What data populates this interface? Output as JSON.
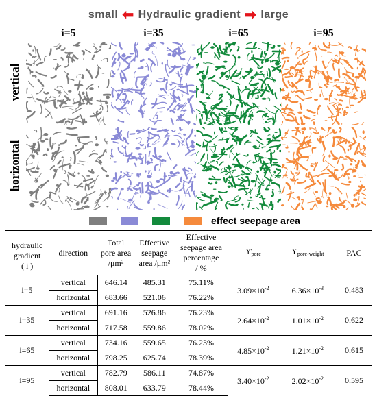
{
  "header": {
    "left": "small",
    "center": "Hydraulic gradient",
    "right": "large"
  },
  "columns": [
    "i=5",
    "i=35",
    "i=65",
    "i=95"
  ],
  "rows": [
    "vertical",
    "horizontal"
  ],
  "panel_colors": [
    "#7f7f7f",
    "#8a8ad6",
    "#138a3c",
    "#f58a3c"
  ],
  "legend": {
    "label": "effect seepage area"
  },
  "table": {
    "headers": {
      "hydraulic": "hydraulic",
      "gradient": "gradient",
      "i_label": "( i )",
      "direction": "direction",
      "total_1": "Total",
      "total_2": "pore area",
      "total_3": "/μm²",
      "eff_1": "Effective",
      "eff_2": "seepage",
      "eff_3": "area /μm²",
      "pct_1": "Effective",
      "pct_2": "seepage area",
      "pct_3": "percentage",
      "pct_4": "/ %",
      "gamma": "ϒ",
      "pore_sub": "pore",
      "pore_weight_sub": "pore-weight",
      "pac": "PAC"
    },
    "groups": [
      {
        "gradient": "i=5",
        "rows": [
          {
            "direction": "vertical",
            "total": "646.14",
            "effective": "485.31",
            "pct": "75.11%"
          },
          {
            "direction": "horizontal",
            "total": "683.66",
            "effective": "521.06",
            "pct": "76.22%"
          }
        ],
        "pore_base": "3.09×10",
        "pore_exp": "-2",
        "weight_base": "6.36×10",
        "weight_exp": "-3",
        "pac": "0.483"
      },
      {
        "gradient": "i=35",
        "rows": [
          {
            "direction": "vertical",
            "total": "691.16",
            "effective": "526.86",
            "pct": "76.23%"
          },
          {
            "direction": "horizontal",
            "total": "717.58",
            "effective": "559.86",
            "pct": "78.02%"
          }
        ],
        "pore_base": "2.64×10",
        "pore_exp": "-2",
        "weight_base": "1.01×10",
        "weight_exp": "-2",
        "pac": "0.622"
      },
      {
        "gradient": "i=65",
        "rows": [
          {
            "direction": "vertical",
            "total": "734.16",
            "effective": "559.65",
            "pct": "76.23%"
          },
          {
            "direction": "horizontal",
            "total": "798.25",
            "effective": "625.74",
            "pct": "78.39%"
          }
        ],
        "pore_base": "4.85×10",
        "pore_exp": "-2",
        "weight_base": "1.21×10",
        "weight_exp": "-2",
        "pac": "0.615"
      },
      {
        "gradient": "i=95",
        "rows": [
          {
            "direction": "vertical",
            "total": "782.79",
            "effective": "586.11",
            "pct": "74.87%"
          },
          {
            "direction": "horizontal",
            "total": "808.01",
            "effective": "633.79",
            "pct": "78.44%"
          }
        ],
        "pore_base": "3.40×10",
        "pore_exp": "-2",
        "weight_base": "2.02×10",
        "weight_exp": "-2",
        "pac": "0.595"
      }
    ]
  }
}
